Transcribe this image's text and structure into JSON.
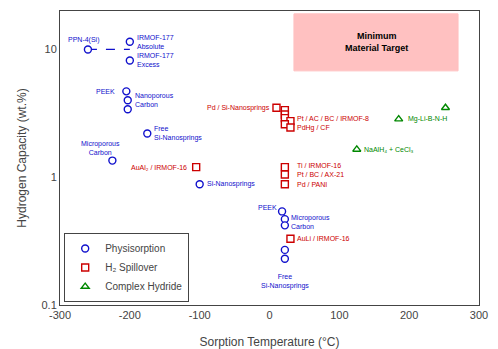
{
  "chart_data": {
    "type": "scatter",
    "xlabel": "Sorption Temperature (°C)",
    "ylabel": "Hydrogen Capacity (wt.%)",
    "log": "y",
    "xlim": [
      -300,
      300
    ],
    "xticks": [
      -300,
      -200,
      -100,
      0,
      100,
      200,
      300
    ],
    "ylim": [
      0.1,
      20
    ],
    "yticks": [
      0.1,
      1,
      10
    ],
    "grid": false,
    "legend": "lower left",
    "series": [
      {
        "name": "Physisorption",
        "color": "#1010CC",
        "marker": "circle",
        "x": [
          -260,
          -200,
          -200,
          -205,
          -203,
          -203,
          -175,
          -225,
          18,
          22,
          22,
          22,
          22,
          -100
        ],
        "values": [
          10.0,
          11.5,
          8.2,
          4.7,
          4.0,
          3.4,
          2.2,
          1.35,
          0.54,
          0.47,
          0.42,
          0.27,
          0.23,
          0.88
        ]
      },
      {
        "name": "H₂ Spillover",
        "color": "#CC0000",
        "marker": "square",
        "x": [
          10,
          22,
          22,
          22,
          30,
          22,
          30,
          -105,
          22,
          22,
          22,
          30
        ],
        "values": [
          3.5,
          3.35,
          3.1,
          2.9,
          2.75,
          2.6,
          2.45,
          1.2,
          1.2,
          1.05,
          0.88,
          0.33
        ]
      },
      {
        "name": "Complex Hydride",
        "color": "#008800",
        "marker": "triangle-up",
        "x": [
          252,
          185,
          125
        ],
        "values": [
          3.5,
          2.85,
          1.65
        ]
      }
    ],
    "target": {
      "x0": 35,
      "x1": 270,
      "y0": 6.8,
      "y1": 19,
      "label": "Minimum\nMaterial Target",
      "color": "#FFBBBB"
    },
    "reference_line": {
      "x": [
        -260,
        -200
      ],
      "y": 10.0,
      "color": "#1010CC",
      "line_style": "dashed"
    },
    "annotations": [
      {
        "text": "PPN-4(Si)",
        "x": -265,
        "y": 10.0,
        "series": "Physisorption"
      },
      {
        "text": "IRMOF-177\nAbsolute",
        "x": -193,
        "y": 11.5,
        "series": "Physisorption"
      },
      {
        "text": "IRMOF-177\nExcess",
        "x": -193,
        "y": 8.2,
        "series": "Physisorption"
      },
      {
        "text": "PEEK",
        "x": -218,
        "y": 4.7,
        "series": "Physisorption"
      },
      {
        "text": "Nanoporous\nCarbon",
        "x": -196,
        "y": 4.0,
        "series": "Physisorption"
      },
      {
        "text": "Free\nSi-Nanosprings",
        "x": -168,
        "y": 2.2,
        "series": "Physisorption"
      },
      {
        "text": "Microporous\nCarbon",
        "x": -242,
        "y": 1.35,
        "series": "Physisorption"
      },
      {
        "text": "PEEK",
        "x": 13,
        "y": 0.58,
        "series": "Physisorption"
      },
      {
        "text": "Microporous\nCarbon",
        "x": 28,
        "y": 0.445,
        "series": "Physisorption"
      },
      {
        "text": "Free\nSi-Nanosprings",
        "x": 22,
        "y": 0.185,
        "series": "Physisorption"
      },
      {
        "text": "Si-Nanosprings",
        "x": -93,
        "y": 0.88,
        "series": "Physisorption"
      },
      {
        "text": "Pd / Si-Nanosprings",
        "x": 3,
        "y": 3.5,
        "series": "H₂ Spillover"
      },
      {
        "text": "Pt / AC / BC / IRMOF-8",
        "x": 37,
        "y": 2.75,
        "series": "H₂ Spillover"
      },
      {
        "text": "PdHg / CF",
        "x": 37,
        "y": 2.45,
        "series": "H₂ Spillover"
      },
      {
        "text": "AuAl₂ / IRMOF-16",
        "x": -115,
        "y": 1.2,
        "series": "H₂ Spillover"
      },
      {
        "text": "Ti / IRMOF-16",
        "x": 37,
        "y": 1.2,
        "series": "H₂ Spillover"
      },
      {
        "text": "Pt / BC / AX-21",
        "x": 37,
        "y": 1.05,
        "series": "H₂ Spillover"
      },
      {
        "text": "Pd / PANI",
        "x": 37,
        "y": 0.88,
        "series": "H₂ Spillover"
      },
      {
        "text": "AuLi / IRMOF-16",
        "x": 37,
        "y": 0.33,
        "series": "H₂ Spillover"
      },
      {
        "text": "Mg-Li-B-N-H",
        "x": 195,
        "y": 2.85,
        "series": "Complex Hydride"
      },
      {
        "text": "NaAlH₄ + CeCl₃",
        "x": 133,
        "y": 1.65,
        "series": "Complex Hydride"
      }
    ]
  }
}
